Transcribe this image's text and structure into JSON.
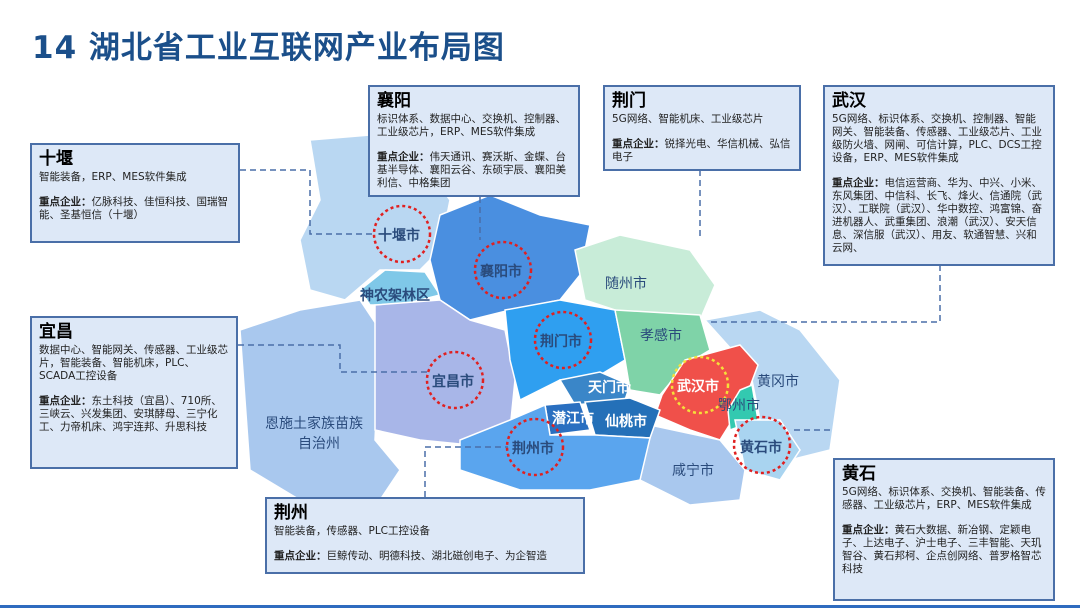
{
  "title": "14 湖北省工业互联网产业布局图",
  "key_label": "重点企业：",
  "regions": {
    "shiyan": "十堰市",
    "xiangyang": "襄阳市",
    "shennongjia": "神农架林区",
    "yichang": "宜昌市",
    "enshi1": "恩施土家族苗族",
    "enshi2": "自治州",
    "jingmen": "荆门市",
    "suizhou": "随州市",
    "xiaogan": "孝感市",
    "wuhan": "武汉市",
    "huanggang": "黄冈市",
    "ezhou": "鄂州市",
    "huangshi": "黄石市",
    "xianning": "咸宁市",
    "tianmen": "天门市",
    "qianjiang": "潜江市",
    "xiantao": "仙桃市",
    "jingzhou": "荆州市"
  },
  "boxes": {
    "shiyan": {
      "name": "十堰",
      "products": "智能装备，ERP、MES软件集成",
      "companies": "亿脉科技、佳恒科技、国瑞智能、圣基恒信（十堰）"
    },
    "yichang": {
      "name": "宜昌",
      "products": "数据中心、智能网关、传感器、工业级芯片，智能装备、智能机床，PLC、SCADA工控设备",
      "companies": "东土科技（宜昌）、710所、三峡云、兴发集团、安琪酵母、三宁化工、力帝机床、鸿宇连邦、升思科技"
    },
    "xiangyang": {
      "name": "襄阳",
      "products": "标识体系、数据中心、交换机、控制器、工业级芯片，ERP、MES软件集成",
      "companies": "伟天通讯、赛沃斯、金蝶、台基半导体、襄阳云谷、东硕宇辰、襄阳美利信、中格集团"
    },
    "jingmen": {
      "name": "荆门",
      "products": "5G网络、智能机床、工业级芯片",
      "companies": "锐择光电、华信机械、弘信电子"
    },
    "wuhan": {
      "name": "武汉",
      "products": "5G网络、标识体系、交换机、控制器、智能网关、智能装备、传感器、工业级芯片、工业级防火墙、网闸、可信计算，PLC、DCS工控设备，ERP、MES软件集成",
      "companies": "电信运营商、华为、中兴、小米、东风集团、中信科、长飞、烽火、信通院（武汉）、工联院（武汉）、华中数控、鸿富锦、奋进机器人、武重集团、浪潮（武汉）、安天信息、深信服（武汉）、用友、软通智慧、兴和云网、"
    },
    "jingzhou": {
      "name": "荆州",
      "products": "智能装备，传感器、PLC工控设备",
      "companies": "巨鲸传动、明德科技、湖北磁创电子、为企智造"
    },
    "huangshi": {
      "name": "黄石",
      "products": "5G网络、标识体系、交换机、智能装备、传感器、工业级芯片，ERP、MES软件集成",
      "companies": "黄石大数据、新冶钢、定颖电子、上达电子、沪士电子、三丰智能、天玑智谷、黄石邦柯、企点创网络、普罗格智芯科技"
    }
  },
  "colors": {
    "title": "#1b4f8a",
    "box_bg": "#dde8f7",
    "box_border": "#4a6fa8",
    "circle": "#e02020",
    "wuhan": "#f0504a"
  }
}
